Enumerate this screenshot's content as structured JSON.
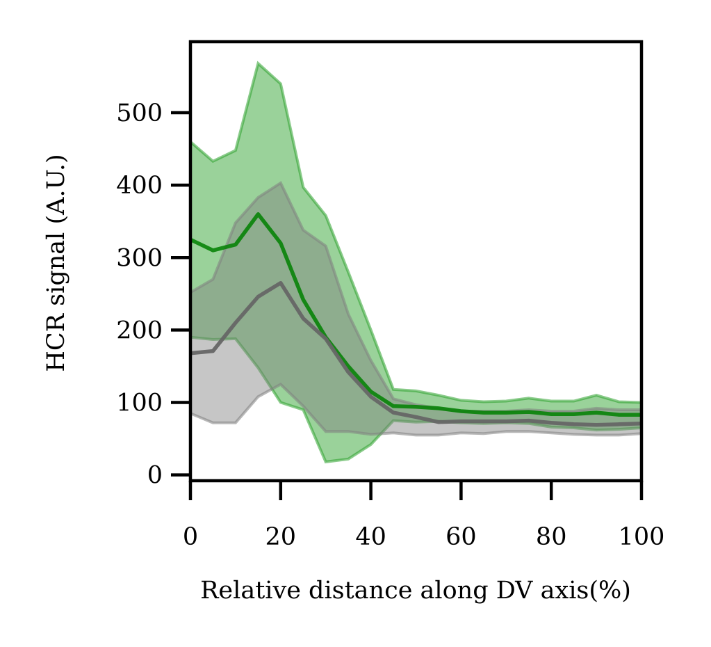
{
  "chart_data": {
    "type": "line",
    "xlabel": "Relative distance along DV axis(%)",
    "ylabel": "HCR signal (A.U.)",
    "xlim": [
      0,
      100
    ],
    "ylim": [
      -8,
      598
    ],
    "xticks": [
      0,
      20,
      40,
      60,
      80,
      100
    ],
    "yticks": [
      0,
      100,
      200,
      300,
      400,
      500
    ],
    "grid": false,
    "x": [
      0,
      5,
      10,
      15,
      20,
      25,
      30,
      35,
      40,
      45,
      50,
      55,
      60,
      65,
      70,
      75,
      80,
      85,
      90,
      95,
      100
    ],
    "series": [
      {
        "color": "#008000",
        "band_color": "#2ca02c",
        "mean": [
          325,
          310,
          318,
          360,
          320,
          242,
          190,
          150,
          115,
          95,
          94,
          92,
          88,
          86,
          86,
          87,
          84,
          84,
          86,
          83,
          83
        ],
        "upper": [
          460,
          433,
          448,
          568,
          540,
          397,
          358,
          280,
          200,
          118,
          116,
          110,
          103,
          101,
          102,
          106,
          102,
          102,
          110,
          101,
          100
        ],
        "lower": [
          190,
          187,
          188,
          148,
          100,
          90,
          18,
          22,
          42,
          75,
          73,
          74,
          72,
          71,
          72,
          71,
          66,
          65,
          62,
          63,
          65
        ]
      },
      {
        "color": "#666666",
        "band_color": "#808080",
        "mean": [
          168,
          171,
          210,
          246,
          265,
          216,
          188,
          142,
          108,
          86,
          80,
          73,
          74,
          74,
          74,
          75,
          72,
          70,
          69,
          70,
          71
        ],
        "upper": [
          252,
          270,
          348,
          383,
          403,
          338,
          316,
          222,
          158,
          105,
          97,
          92,
          88,
          88,
          88,
          90,
          88,
          88,
          92,
          90,
          90
        ],
        "lower": [
          85,
          72,
          72,
          108,
          125,
          95,
          60,
          60,
          56,
          58,
          55,
          55,
          58,
          57,
          60,
          60,
          58,
          56,
          55,
          55,
          57
        ]
      }
    ]
  }
}
